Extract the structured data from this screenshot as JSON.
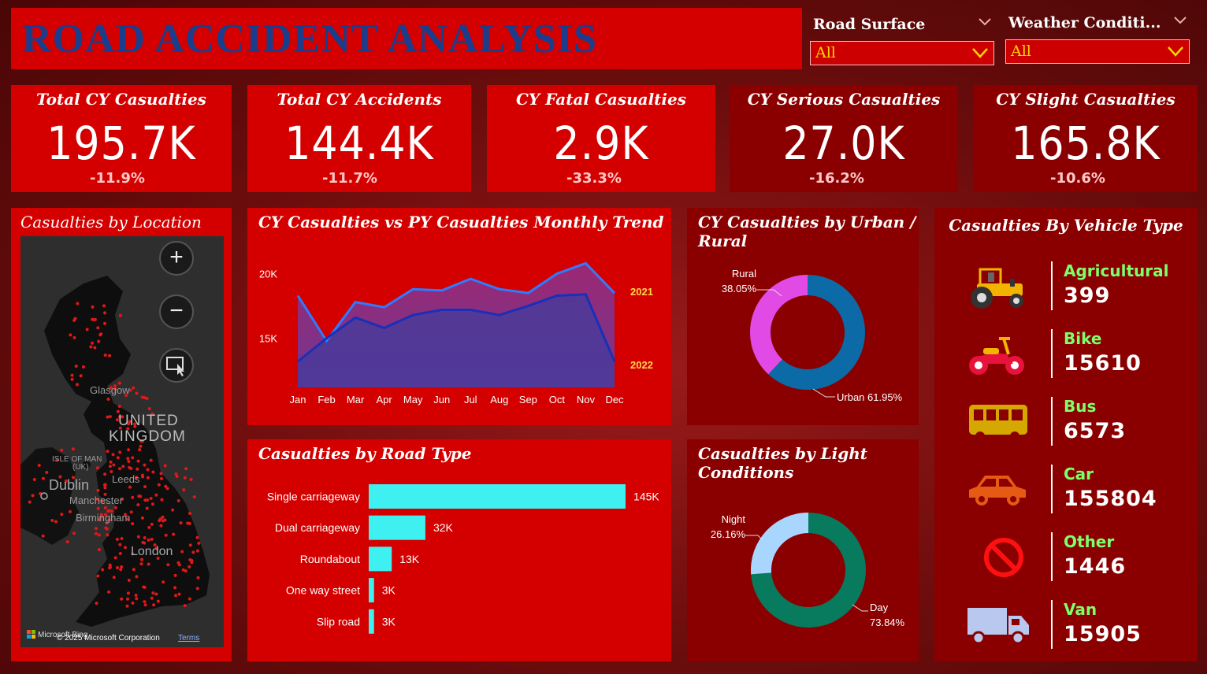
{
  "header": {
    "title": "ROAD ACCIDENT ANALYSIS"
  },
  "slicers": [
    {
      "label": "Road Surface",
      "value": "All"
    },
    {
      "label": "Weather Conditi...",
      "value": "All"
    }
  ],
  "kpis": [
    {
      "label": "Total CY Casualties",
      "value": "195.7K",
      "delta": "-11.9%"
    },
    {
      "label": "Total CY Accidents",
      "value": "144.4K",
      "delta": "-11.7%"
    },
    {
      "label": "CY Fatal Casualties",
      "value": "2.9K",
      "delta": "-33.3%"
    },
    {
      "label": "CY Serious Casualties",
      "value": "27.0K",
      "delta": "-16.2%"
    },
    {
      "label": "CY Slight Casualties",
      "value": "165.8K",
      "delta": "-10.6%"
    }
  ],
  "map": {
    "title": "Casualties by Location",
    "labels": {
      "glasgow": "Glasgow",
      "uk1": "UNITED",
      "uk2": "KINGDOM",
      "iom1": "ISLE OF MAN",
      "iom2": "(UK)",
      "dublin": "Dublin",
      "manchester": "Manchester",
      "leeds": "Leeds",
      "birmingham": "Birmingham",
      "london": "London"
    },
    "zoom_in": "+",
    "zoom_out": "−",
    "attribution": "Microsoft Bing",
    "copyright": "© 2025 Microsoft Corporation",
    "terms": "Terms"
  },
  "colors": {
    "accent_red": "#d40000",
    "dark_red": "#8a0000",
    "cy_line": "#2f7bff",
    "py_line": "#1a2fb8",
    "urban": "#0c6aa6",
    "rural": "#e24ae6",
    "day": "#087a5e",
    "night": "#a8d6ff",
    "bar": "#3ef0ef"
  },
  "chart_data": [
    {
      "type": "area",
      "title": "CY Casualties vs PY Casualties Monthly Trend",
      "categories": [
        "Jan",
        "Feb",
        "Mar",
        "Apr",
        "May",
        "Jun",
        "Jul",
        "Aug",
        "Sep",
        "Oct",
        "Nov",
        "Dec"
      ],
      "series": [
        {
          "name": "2021",
          "values": [
            18300,
            14800,
            17800,
            17400,
            18800,
            18700,
            19600,
            18800,
            18500,
            20000,
            20800,
            18500
          ]
        },
        {
          "name": "2022",
          "values": [
            13200,
            15000,
            16600,
            15800,
            16800,
            17200,
            17200,
            16800,
            17500,
            18300,
            18400,
            13200
          ]
        }
      ],
      "yticks": [
        {
          "value": 15000,
          "label": "15K"
        },
        {
          "value": 20000,
          "label": "20K"
        }
      ],
      "ylim": [
        11200,
        21800
      ]
    },
    {
      "type": "pie",
      "title": "CY Casualties by Urban / Rural",
      "slices": [
        {
          "label": "Urban",
          "value": 61.95,
          "display": "61.95%"
        },
        {
          "label": "Rural",
          "value": 38.05,
          "display": "38.05%"
        }
      ]
    },
    {
      "type": "bar",
      "title": "Casualties by Road Type",
      "categories": [
        "Single carriageway",
        "Dual carriageway",
        "Roundabout",
        "One way street",
        "Slip road"
      ],
      "values": [
        145000,
        32000,
        13000,
        3000,
        3000
      ],
      "data_labels": [
        "145K",
        "32K",
        "13K",
        "3K",
        "3K"
      ]
    },
    {
      "type": "pie",
      "title": "Casualties by Light Conditions",
      "slices": [
        {
          "label": "Day",
          "value": 73.84,
          "display": "73.84%"
        },
        {
          "label": "Night",
          "value": 26.16,
          "display": "26.16%"
        }
      ]
    }
  ],
  "vehicles": {
    "title": "Casualties By Vehicle Type",
    "items": [
      {
        "name": "Agricultural",
        "value": "399",
        "icon": "tractor-icon"
      },
      {
        "name": "Bike",
        "value": "15610",
        "icon": "motorbike-icon"
      },
      {
        "name": "Bus",
        "value": "6573",
        "icon": "bus-icon"
      },
      {
        "name": "Car",
        "value": "155804",
        "icon": "car-icon"
      },
      {
        "name": "Other",
        "value": "1446",
        "icon": "no-entry-icon"
      },
      {
        "name": "Van",
        "value": "15905",
        "icon": "van-icon"
      }
    ]
  }
}
